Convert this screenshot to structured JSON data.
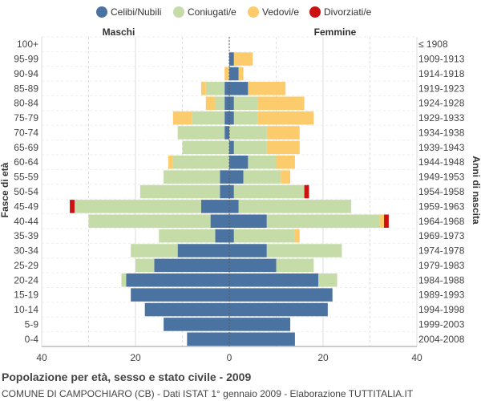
{
  "chart_data": {
    "type": "bar",
    "title": "Popolazione per età, sesso e stato civile - 2009",
    "subtitle": "COMUNE DI CAMPOCHIARO (CB) - Dati ISTAT 1° gennaio 2009 - Elaborazione TUTTITALIA.IT",
    "left_label": "Maschi",
    "right_label": "Femmine",
    "ylabel_left": "Fasce di età",
    "ylabel_right": "Anni di nascita",
    "xlim": [
      -40,
      40
    ],
    "xticks": [
      "40",
      "20",
      "0",
      "20",
      "40"
    ],
    "legend": [
      {
        "name": "Celibi/Nubili",
        "color": "#4a73a1"
      },
      {
        "name": "Coniugati/e",
        "color": "#c5dba8"
      },
      {
        "name": "Vedovi/e",
        "color": "#fccb6b"
      },
      {
        "name": "Divorziati/e",
        "color": "#cc1111"
      }
    ],
    "age_groups": [
      "100+",
      "95-99",
      "90-94",
      "85-89",
      "80-84",
      "75-79",
      "70-74",
      "65-69",
      "60-64",
      "55-59",
      "50-54",
      "45-49",
      "40-44",
      "35-39",
      "30-34",
      "25-29",
      "20-24",
      "15-19",
      "10-14",
      "5-9",
      "0-4"
    ],
    "birth_years": [
      "≤ 1908",
      "1909-1913",
      "1914-1918",
      "1919-1923",
      "1924-1928",
      "1929-1933",
      "1934-1938",
      "1939-1943",
      "1944-1948",
      "1949-1953",
      "1954-1958",
      "1959-1963",
      "1964-1968",
      "1969-1973",
      "1974-1978",
      "1979-1983",
      "1984-1988",
      "1989-1993",
      "1994-1998",
      "1999-2003",
      "2004-2008"
    ],
    "males": {
      "celibi": [
        0,
        0,
        0,
        1,
        1,
        1,
        1,
        0,
        0,
        2,
        2,
        6,
        4,
        3,
        11,
        16,
        22,
        21,
        18,
        14,
        9
      ],
      "coniugati": [
        0,
        0,
        0,
        4,
        2,
        7,
        10,
        10,
        12,
        12,
        17,
        27,
        26,
        12,
        10,
        4,
        1,
        0,
        0,
        0,
        0
      ],
      "vedovi": [
        0,
        0,
        1,
        1,
        2,
        4,
        0,
        0,
        1,
        0,
        0,
        0,
        0,
        0,
        0,
        0,
        0,
        0,
        0,
        0,
        0
      ],
      "divorziati": [
        0,
        0,
        0,
        0,
        0,
        0,
        0,
        0,
        0,
        0,
        0,
        1,
        0,
        0,
        0,
        0,
        0,
        0,
        0,
        0,
        0
      ]
    },
    "females": {
      "nubili": [
        0,
        1,
        2,
        4,
        1,
        1,
        0,
        1,
        4,
        3,
        1,
        2,
        8,
        1,
        8,
        10,
        19,
        22,
        21,
        13,
        14
      ],
      "coniugate": [
        0,
        0,
        0,
        0,
        5,
        5,
        8,
        7,
        6,
        8,
        15,
        24,
        24,
        13,
        16,
        8,
        4,
        0,
        0,
        0,
        0
      ],
      "vedove": [
        0,
        4,
        1,
        8,
        10,
        12,
        7,
        7,
        4,
        2,
        0,
        0,
        1,
        1,
        0,
        0,
        0,
        0,
        0,
        0,
        0
      ],
      "divorziate": [
        0,
        0,
        0,
        0,
        0,
        0,
        0,
        0,
        0,
        0,
        1,
        0,
        1,
        0,
        0,
        0,
        0,
        0,
        0,
        0,
        0
      ]
    }
  }
}
